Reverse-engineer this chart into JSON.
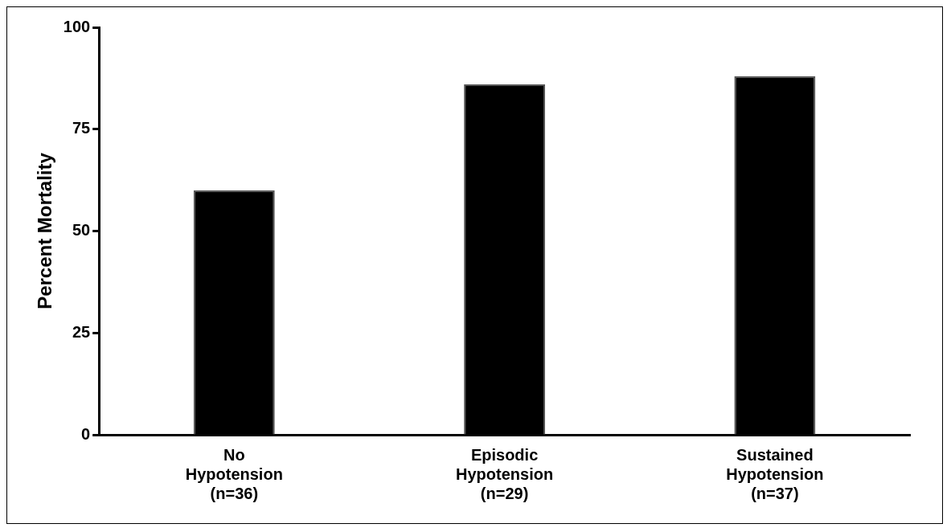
{
  "chart_data": {
    "type": "bar",
    "ylabel": "Percent Mortality",
    "categories": [
      "No\nHypotension\n(n=36)",
      "Episodic\nHypotension\n(n=29)",
      "Sustained\nHypotension\n(n=37)"
    ],
    "values": [
      60,
      86,
      88
    ],
    "color": "#000000",
    "ylim": [
      0,
      100
    ],
    "yticks": [
      0,
      25,
      50,
      75,
      100
    ],
    "grid": false,
    "legend": false
  }
}
